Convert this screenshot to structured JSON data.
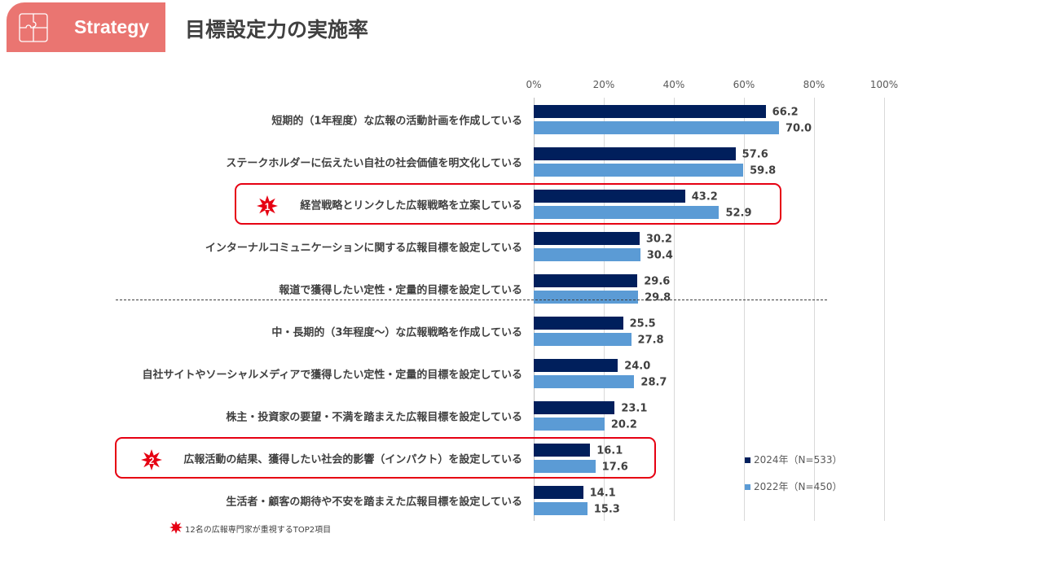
{
  "header": {
    "badge": "Strategy",
    "title": "目標設定力の実施率"
  },
  "colors": {
    "s2024": "#001f5c",
    "s2022": "#5b9bd5",
    "highlight": "#e60012",
    "badge": "#ea7571"
  },
  "chart_data": {
    "type": "bar",
    "orientation": "horizontal",
    "title": "目標設定力の実施率",
    "xlim": [
      0,
      100
    ],
    "ticks": [
      "0%",
      "20%",
      "40%",
      "60%",
      "80%",
      "100%"
    ],
    "categories": [
      "短期的（1年程度）な広報の活動計画を作成している",
      "ステークホルダーに伝えたい自社の社会価値を明文化している",
      "経営戦略とリンクした広報戦略を立案している",
      "インターナルコミュニケーションに関する広報目標を設定している",
      "報道で獲得したい定性・定量的目標を設定している",
      "中・長期的（3年程度～）な広報戦略を作成している",
      "自社サイトやソーシャルメディアで獲得したい定性・定量的目標を設定している",
      "株主・投資家の要望・不満を踏まえた広報目標を設定している",
      "広報活動の結果、獲得したい社会的影響（インパクト）を設定している",
      "生活者・顧客の期待や不安を踏まえた広報目標を設定している"
    ],
    "series": [
      {
        "name": "2024年（N=533）",
        "values": [
          66.2,
          57.6,
          43.2,
          30.2,
          29.6,
          25.5,
          24.0,
          23.1,
          16.1,
          14.1
        ]
      },
      {
        "name": "2022年（N=450）",
        "values": [
          70.0,
          59.8,
          52.9,
          30.4,
          29.8,
          27.8,
          28.7,
          20.2,
          17.6,
          15.3
        ]
      }
    ],
    "legend": "bottom-right",
    "highlights": [
      {
        "category_index": 2,
        "rank": "1"
      },
      {
        "category_index": 8,
        "rank": "2"
      }
    ],
    "note": "12名の広報専門家が重視するTOP2項目"
  }
}
